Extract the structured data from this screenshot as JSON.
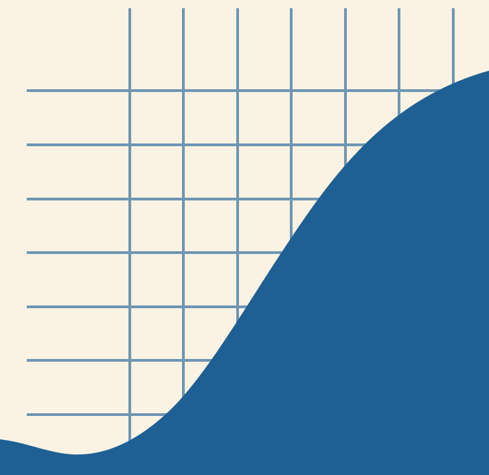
{
  "colors": {
    "background": "#FAF3E3",
    "grid": "#6F96B3",
    "wave": "#1F6094"
  },
  "icons": {
    "grid": "grid-pattern-icon",
    "wave": "wave-shape-icon"
  }
}
